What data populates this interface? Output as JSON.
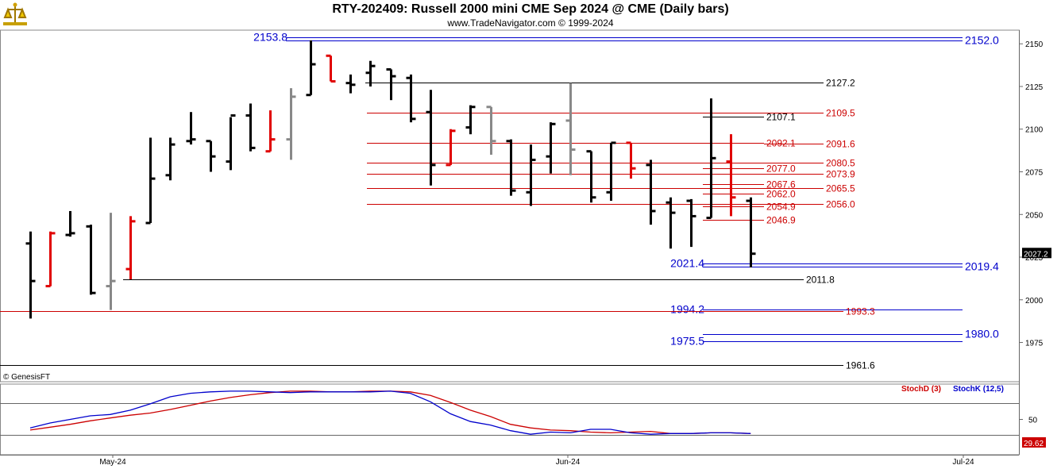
{
  "header": {
    "title": "RTY-202409:  Russell 2000 mini CME Sep 2024 @ CME  (Daily bars)",
    "subtitle": "www.TradeNavigator.com © 1999-2024",
    "logo": "trade-navigator-logo-icon"
  },
  "copyright_label": "© GenesisFT",
  "colors": {
    "up_bar": "#000000",
    "down_bar": "#e00000",
    "neutral_bar": "#888888",
    "close_up_tick": "#00cc00",
    "blue_level": "#0000cc",
    "red_level": "#cc0000",
    "black_level": "#000000",
    "stochK": "#0000cc",
    "stochD": "#cc0000"
  },
  "chart_data": [
    {
      "type": "ohlc",
      "title": "RTY-202409 Daily bars",
      "ylim": [
        1952,
        2158
      ],
      "y_ticks": [
        1975.0,
        2000.0,
        2025.0,
        2050.0,
        2075.0,
        2100.0,
        2125.0,
        2150.0
      ],
      "x_ticks": [
        "May-24",
        "Jun-24",
        "Jul-24"
      ],
      "last_price_label": "2027.2",
      "bars": [
        {
          "day": 0,
          "open": 2033,
          "high": 2040,
          "low": 1989,
          "close": 2011,
          "color": "black"
        },
        {
          "day": 1,
          "open": 2008,
          "high": 2040,
          "low": 2008,
          "close": 2039,
          "color": "red"
        },
        {
          "day": 2,
          "open": 2038,
          "high": 2052,
          "low": 2037,
          "close": 2039,
          "color": "black"
        },
        {
          "day": 3,
          "open": 2043,
          "high": 2044,
          "low": 2003,
          "close": 2004,
          "color": "black"
        },
        {
          "day": 4,
          "open": 2008,
          "high": 2051,
          "low": 1994,
          "close": 2011,
          "color": "gray"
        },
        {
          "day": 5,
          "open": 2018,
          "high": 2049,
          "low": 2012,
          "close": 2046,
          "color": "red"
        },
        {
          "day": 6,
          "open": 2045,
          "high": 2095,
          "low": 2045,
          "close": 2071,
          "color": "black"
        },
        {
          "day": 7,
          "open": 2073,
          "high": 2095,
          "low": 2070,
          "close": 2091,
          "color": "black"
        },
        {
          "day": 8,
          "open": 2093,
          "high": 2110,
          "low": 2091,
          "close": 2094,
          "color": "black"
        },
        {
          "day": 9,
          "open": 2093,
          "high": 2093,
          "low": 2075,
          "close": 2084,
          "color": "black"
        },
        {
          "day": 10,
          "open": 2081,
          "high": 2107,
          "low": 2076,
          "close": 2108,
          "color": "black"
        },
        {
          "day": 11,
          "open": 2108,
          "high": 2115,
          "low": 2087,
          "close": 2089,
          "color": "black"
        },
        {
          "day": 12,
          "open": 2087,
          "high": 2111,
          "low": 2087,
          "close": 2094,
          "color": "red"
        },
        {
          "day": 13,
          "open": 2094,
          "high": 2124,
          "low": 2082,
          "close": 2119,
          "color": "gray"
        },
        {
          "day": 14,
          "open": 2120,
          "high": 2152,
          "low": 2120,
          "close": 2138,
          "color": "black"
        },
        {
          "day": 15,
          "open": 2143,
          "high": 2143,
          "low": 2128,
          "close": 2128,
          "color": "red"
        },
        {
          "day": 16,
          "open": 2127,
          "high": 2132,
          "low": 2121,
          "close": 2126,
          "color": "black"
        },
        {
          "day": 17,
          "open": 2133,
          "high": 2140,
          "low": 2125,
          "close": 2137,
          "color": "black"
        },
        {
          "day": 18,
          "open": 2135,
          "high": 2135,
          "low": 2117,
          "close": 2131,
          "color": "black"
        },
        {
          "day": 19,
          "open": 2130,
          "high": 2132,
          "low": 2104,
          "close": 2106,
          "color": "black"
        },
        {
          "day": 20,
          "open": 2110,
          "high": 2123,
          "low": 2067,
          "close": 2079,
          "color": "black"
        },
        {
          "day": 21,
          "open": 2079,
          "high": 2100,
          "low": 2079,
          "close": 2099,
          "color": "red"
        },
        {
          "day": 22,
          "open": 2101,
          "high": 2114,
          "low": 2097,
          "close": 2113,
          "color": "black"
        },
        {
          "day": 23,
          "open": 2113,
          "high": 2113,
          "low": 2085,
          "close": 2093,
          "color": "gray"
        },
        {
          "day": 24,
          "open": 2093,
          "high": 2094,
          "low": 2061,
          "close": 2064,
          "color": "black"
        },
        {
          "day": 25,
          "open": 2063,
          "high": 2091,
          "low": 2055,
          "close": 2082,
          "color": "black"
        },
        {
          "day": 26,
          "open": 2084,
          "high": 2104,
          "low": 2074,
          "close": 2103,
          "color": "black"
        },
        {
          "day": 27,
          "open": 2105,
          "high": 2127,
          "low": 2073,
          "close": 2088,
          "color": "gray"
        },
        {
          "day": 28,
          "open": 2087,
          "high": 2087,
          "low": 2057,
          "close": 2060,
          "color": "black"
        },
        {
          "day": 29,
          "open": 2063,
          "high": 2092,
          "low": 2058,
          "close": 2092,
          "color": "black"
        },
        {
          "day": 30,
          "open": 2092,
          "high": 2092,
          "low": 2071,
          "close": 2077,
          "color": "red"
        },
        {
          "day": 31,
          "open": 2079,
          "high": 2082,
          "low": 2044,
          "close": 2052,
          "color": "black"
        },
        {
          "day": 32,
          "open": 2057,
          "high": 2060,
          "low": 2030,
          "close": 2051,
          "color": "black"
        },
        {
          "day": 33,
          "open": 2058,
          "high": 2059,
          "low": 2031,
          "close": 2049,
          "color": "black"
        },
        {
          "day": 34,
          "open": 2048,
          "high": 2118,
          "low": 2048,
          "close": 2083,
          "color": "black"
        },
        {
          "day": 35,
          "open": 2081,
          "high": 2097,
          "low": 2049,
          "close": 2060,
          "color": "red"
        },
        {
          "day": 36,
          "open": 2058,
          "high": 2060,
          "low": 2019,
          "close": 2027,
          "color": "black"
        }
      ],
      "levels": [
        {
          "label": "2153.8",
          "value": 2153.8,
          "color": "blue",
          "label_side": "left"
        },
        {
          "label": "2152.0",
          "value": 2152.0,
          "color": "blue",
          "label_side": "right"
        },
        {
          "label": "2127.2",
          "value": 2127.2,
          "color": "black",
          "label_side": "right"
        },
        {
          "label": "2109.5",
          "value": 2109.5,
          "color": "red",
          "label_side": "right"
        },
        {
          "label": "2107.1",
          "value": 2107.1,
          "color": "black",
          "label_side": "right"
        },
        {
          "label": "2092.1",
          "value": 2092.1,
          "color": "red",
          "label_side": "right"
        },
        {
          "label": "2091.6",
          "value": 2091.6,
          "color": "red",
          "label_side": "right"
        },
        {
          "label": "2080.5",
          "value": 2080.5,
          "color": "red",
          "label_side": "right"
        },
        {
          "label": "2077.0",
          "value": 2077.0,
          "color": "red",
          "label_side": "right"
        },
        {
          "label": "2073.9",
          "value": 2073.9,
          "color": "red",
          "label_side": "right"
        },
        {
          "label": "2067.6",
          "value": 2067.6,
          "color": "red",
          "label_side": "right"
        },
        {
          "label": "2065.5",
          "value": 2065.5,
          "color": "red",
          "label_side": "right"
        },
        {
          "label": "2062.0",
          "value": 2062.0,
          "color": "red",
          "label_side": "right"
        },
        {
          "label": "2056.0",
          "value": 2056.0,
          "color": "red",
          "label_side": "right"
        },
        {
          "label": "2054.9",
          "value": 2054.9,
          "color": "red",
          "label_side": "right"
        },
        {
          "label": "2046.9",
          "value": 2046.9,
          "color": "red",
          "label_side": "right"
        },
        {
          "label": "2021.4",
          "value": 2021.4,
          "color": "blue",
          "label_side": "left"
        },
        {
          "label": "2019.4",
          "value": 2019.4,
          "color": "blue",
          "label_side": "right"
        },
        {
          "label": "2011.8",
          "value": 2011.8,
          "color": "black",
          "label_side": "right"
        },
        {
          "label": "1994.2",
          "value": 1994.2,
          "color": "blue",
          "label_side": "left"
        },
        {
          "label": "1993.3",
          "value": 1993.3,
          "color": "red",
          "label_side": "right"
        },
        {
          "label": "1980.0",
          "value": 1980.0,
          "color": "blue",
          "label_side": "right"
        },
        {
          "label": "1975.5",
          "value": 1975.5,
          "color": "blue",
          "label_side": "left"
        },
        {
          "label": "1961.6",
          "value": 1961.6,
          "color": "black",
          "label_side": "right"
        }
      ]
    },
    {
      "type": "line",
      "title": "Stochastics",
      "ylim": [
        0,
        100
      ],
      "y_ticks": [
        50
      ],
      "last_value_label": "29.62",
      "series": [
        {
          "name": "StochD (3)",
          "color": "red",
          "values": [
            35,
            39,
            43,
            48,
            52,
            56,
            59,
            64,
            70,
            76,
            81,
            85,
            88,
            90,
            90,
            89,
            89,
            90,
            90,
            89,
            84,
            74,
            63,
            54,
            43,
            38,
            35,
            34,
            32,
            31,
            32,
            33,
            30,
            30,
            31,
            31,
            30
          ]
        },
        {
          "name": "StochK (12,5)",
          "color": "blue",
          "values": [
            38,
            45,
            50,
            55,
            57,
            63,
            72,
            82,
            87,
            89,
            90,
            90,
            89,
            88,
            89,
            89,
            89,
            89,
            90,
            87,
            75,
            58,
            47,
            42,
            34,
            29,
            32,
            31,
            36,
            36,
            31,
            29,
            30,
            30,
            31,
            31,
            30
          ]
        }
      ]
    }
  ]
}
